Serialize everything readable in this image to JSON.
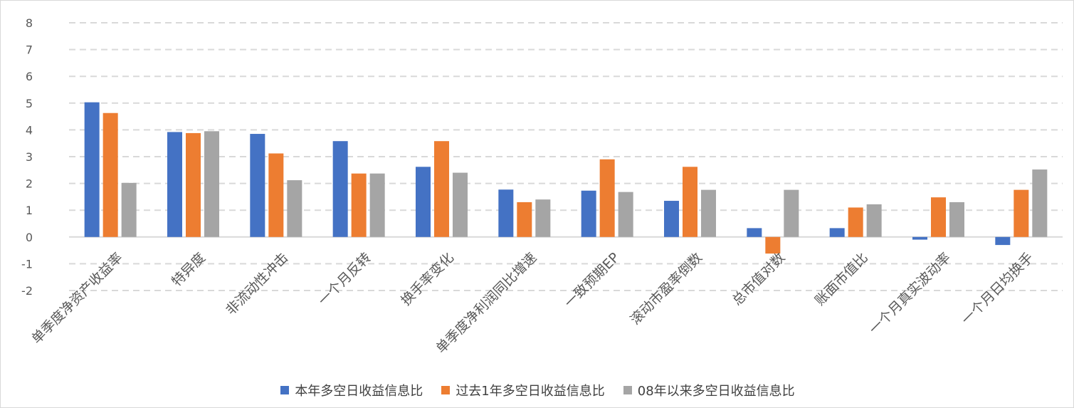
{
  "chart_data": {
    "type": "bar",
    "title": "",
    "xlabel": "",
    "ylabel": "",
    "ylim": [
      -2,
      8
    ],
    "yticks": [
      8,
      7,
      6,
      5,
      4,
      3,
      2,
      1,
      0,
      -1,
      -2
    ],
    "grid": true,
    "legend_position": "bottom",
    "categories": [
      "单季度净资产收益率",
      "特异度",
      "非流动性冲击",
      "一个月反转",
      "换手率变化",
      "单季度净利润同比增速",
      "一致预期EP",
      "滚动市盈率倒数",
      "总市值对数",
      "账面市值比",
      "一个月真实波动率",
      "一个月日均换手"
    ],
    "series": [
      {
        "name": "本年多空日收益信息比",
        "color": "#4472C4",
        "values": [
          5.03,
          3.92,
          3.85,
          3.58,
          2.62,
          1.77,
          1.73,
          1.35,
          0.33,
          0.33,
          -0.1,
          -0.3
        ]
      },
      {
        "name": "过去1年多空日收益信息比",
        "color": "#ED7D31",
        "values": [
          4.63,
          3.88,
          3.12,
          2.37,
          3.58,
          1.3,
          2.9,
          2.62,
          -0.62,
          1.1,
          1.48,
          1.76
        ]
      },
      {
        "name": "08年以来多空日收益信息比",
        "color": "#A5A5A5",
        "values": [
          2.02,
          3.95,
          2.12,
          2.37,
          2.4,
          1.4,
          1.68,
          1.76,
          1.76,
          1.22,
          1.3,
          2.52
        ]
      }
    ]
  }
}
